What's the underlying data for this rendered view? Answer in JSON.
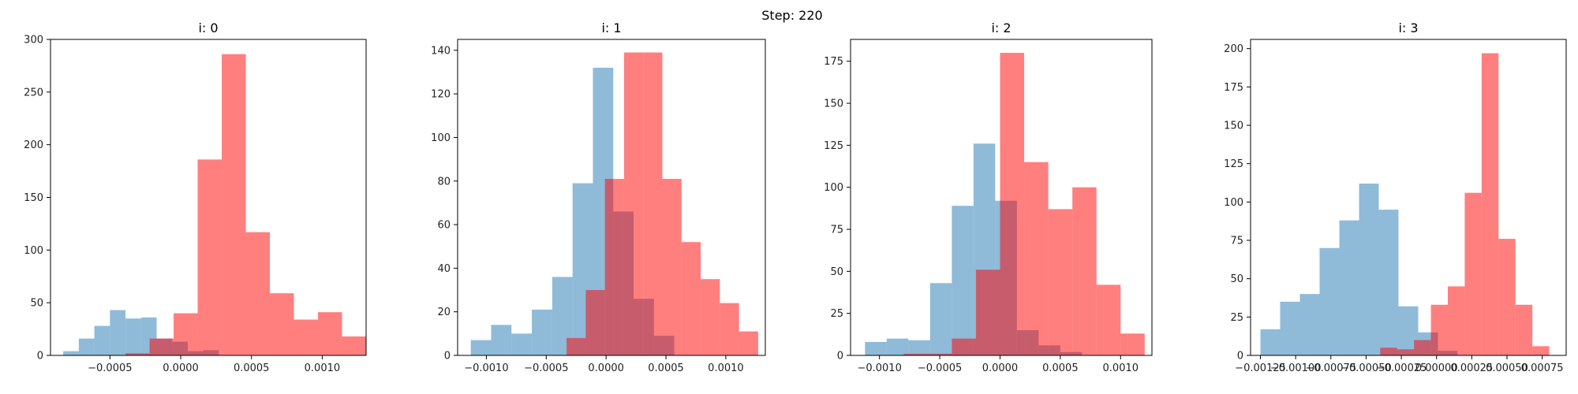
{
  "suptitle": "Step: 220",
  "colors": {
    "blue": "#1f77b4",
    "red": "#ff0000"
  },
  "opacity": {
    "blue": 0.5,
    "red": 0.5
  },
  "chart_data": [
    {
      "type": "bar",
      "title": "i: 0",
      "xlim": [
        -0.00092,
        0.00131
      ],
      "ylim": [
        0,
        300
      ],
      "xticks": [
        -0.0005,
        0.0,
        0.0005,
        0.001
      ],
      "xtick_labels": [
        "−0.0005",
        "0.0000",
        "0.0005",
        "0.0010"
      ],
      "yticks": [
        0,
        50,
        100,
        150,
        200,
        250,
        300
      ],
      "series": [
        {
          "color": "blue",
          "edges": [
            -0.00083,
            -0.00072,
            -0.00061,
            -0.0005,
            -0.00039,
            -0.00028,
            -0.00017,
            -6e-05,
            5e-05,
            0.00016,
            0.00027
          ],
          "counts": [
            4,
            16,
            28,
            43,
            35,
            36,
            16,
            13,
            4,
            5
          ]
        },
        {
          "color": "red",
          "edges": [
            -0.00039,
            -0.00022,
            -5e-05,
            0.00012,
            0.00029,
            0.00046,
            0.00063,
            0.0008,
            0.00097,
            0.00114,
            0.00131
          ],
          "counts": [
            2,
            16,
            40,
            186,
            286,
            117,
            59,
            34,
            41,
            18
          ]
        }
      ]
    },
    {
      "type": "bar",
      "title": "i: 1",
      "xlim": [
        -0.00124,
        0.00133
      ],
      "ylim": [
        0,
        145
      ],
      "xticks": [
        -0.001,
        -0.0005,
        0.0,
        0.0005,
        0.001
      ],
      "xtick_labels": [
        "−0.0010",
        "−0.0005",
        "0.0000",
        "0.0005",
        "0.0010"
      ],
      "yticks": [
        0,
        20,
        40,
        60,
        80,
        100,
        120,
        140
      ],
      "series": [
        {
          "color": "blue",
          "edges": [
            -0.00113,
            -0.00096,
            -0.00079,
            -0.00062,
            -0.00045,
            -0.00028,
            -0.00011,
            6e-05,
            0.00023,
            0.0004,
            0.00057
          ],
          "counts": [
            7,
            14,
            10,
            21,
            36,
            79,
            132,
            66,
            26,
            9
          ]
        },
        {
          "color": "red",
          "edges": [
            -0.00033,
            -0.00017,
            -1e-05,
            0.00015,
            0.00031,
            0.00047,
            0.00063,
            0.00079,
            0.00095,
            0.00111,
            0.00127
          ],
          "counts": [
            8,
            30,
            81,
            139,
            139,
            81,
            52,
            35,
            24,
            11
          ]
        }
      ]
    },
    {
      "type": "bar",
      "title": "i: 2",
      "xlim": [
        -0.00124,
        0.00126
      ],
      "ylim": [
        0,
        188
      ],
      "xticks": [
        -0.001,
        -0.0005,
        0.0,
        0.0005,
        0.001
      ],
      "xtick_labels": [
        "−0.0010",
        "−0.0005",
        "0.0000",
        "0.0005",
        "0.0010"
      ],
      "yticks": [
        0,
        25,
        50,
        75,
        100,
        125,
        150,
        175
      ],
      "series": [
        {
          "color": "blue",
          "edges": [
            -0.00112,
            -0.00094,
            -0.00076,
            -0.00058,
            -0.0004,
            -0.00022,
            -4e-05,
            0.00014,
            0.00032,
            0.0005,
            0.00068
          ],
          "counts": [
            8,
            10,
            9,
            43,
            89,
            126,
            92,
            15,
            6,
            2
          ]
        },
        {
          "color": "red",
          "edges": [
            -0.0008,
            -0.0006,
            -0.0004,
            -0.0002,
            0.0,
            0.0002,
            0.0004,
            0.0006,
            0.0008,
            0.001,
            0.0012
          ],
          "counts": [
            1,
            1,
            10,
            51,
            180,
            115,
            87,
            100,
            42,
            13
          ]
        }
      ]
    },
    {
      "type": "bar",
      "title": "i: 3",
      "xlim": [
        -0.00132,
        0.00092
      ],
      "ylim": [
        0,
        206
      ],
      "xticks": [
        -0.00125,
        -0.001,
        -0.00075,
        -0.0005,
        -0.00025,
        0.0,
        0.00025,
        0.0005,
        0.00075
      ],
      "xtick_labels": [
        "−0.00125",
        "−0.00100",
        "−0.00075",
        "−0.00050",
        "−0.00025",
        "0.00000",
        "0.00025",
        "0.00050",
        "0.00075"
      ],
      "yticks": [
        0,
        25,
        50,
        75,
        100,
        125,
        150,
        175,
        200
      ],
      "series": [
        {
          "color": "blue",
          "edges": [
            -0.00125,
            -0.00111,
            -0.00097,
            -0.00083,
            -0.00069,
            -0.00055,
            -0.00041,
            -0.00027,
            -0.00013,
            1e-05,
            0.00015
          ],
          "counts": [
            17,
            35,
            40,
            70,
            88,
            112,
            95,
            32,
            15,
            3
          ]
        },
        {
          "color": "red",
          "edges": [
            -0.0004,
            -0.00028,
            -0.00016,
            -4e-05,
            8e-05,
            0.0002,
            0.00032,
            0.00044,
            0.00056,
            0.00068,
            0.0008
          ],
          "counts": [
            5,
            4,
            10,
            33,
            45,
            106,
            197,
            76,
            33,
            6
          ]
        }
      ]
    }
  ]
}
